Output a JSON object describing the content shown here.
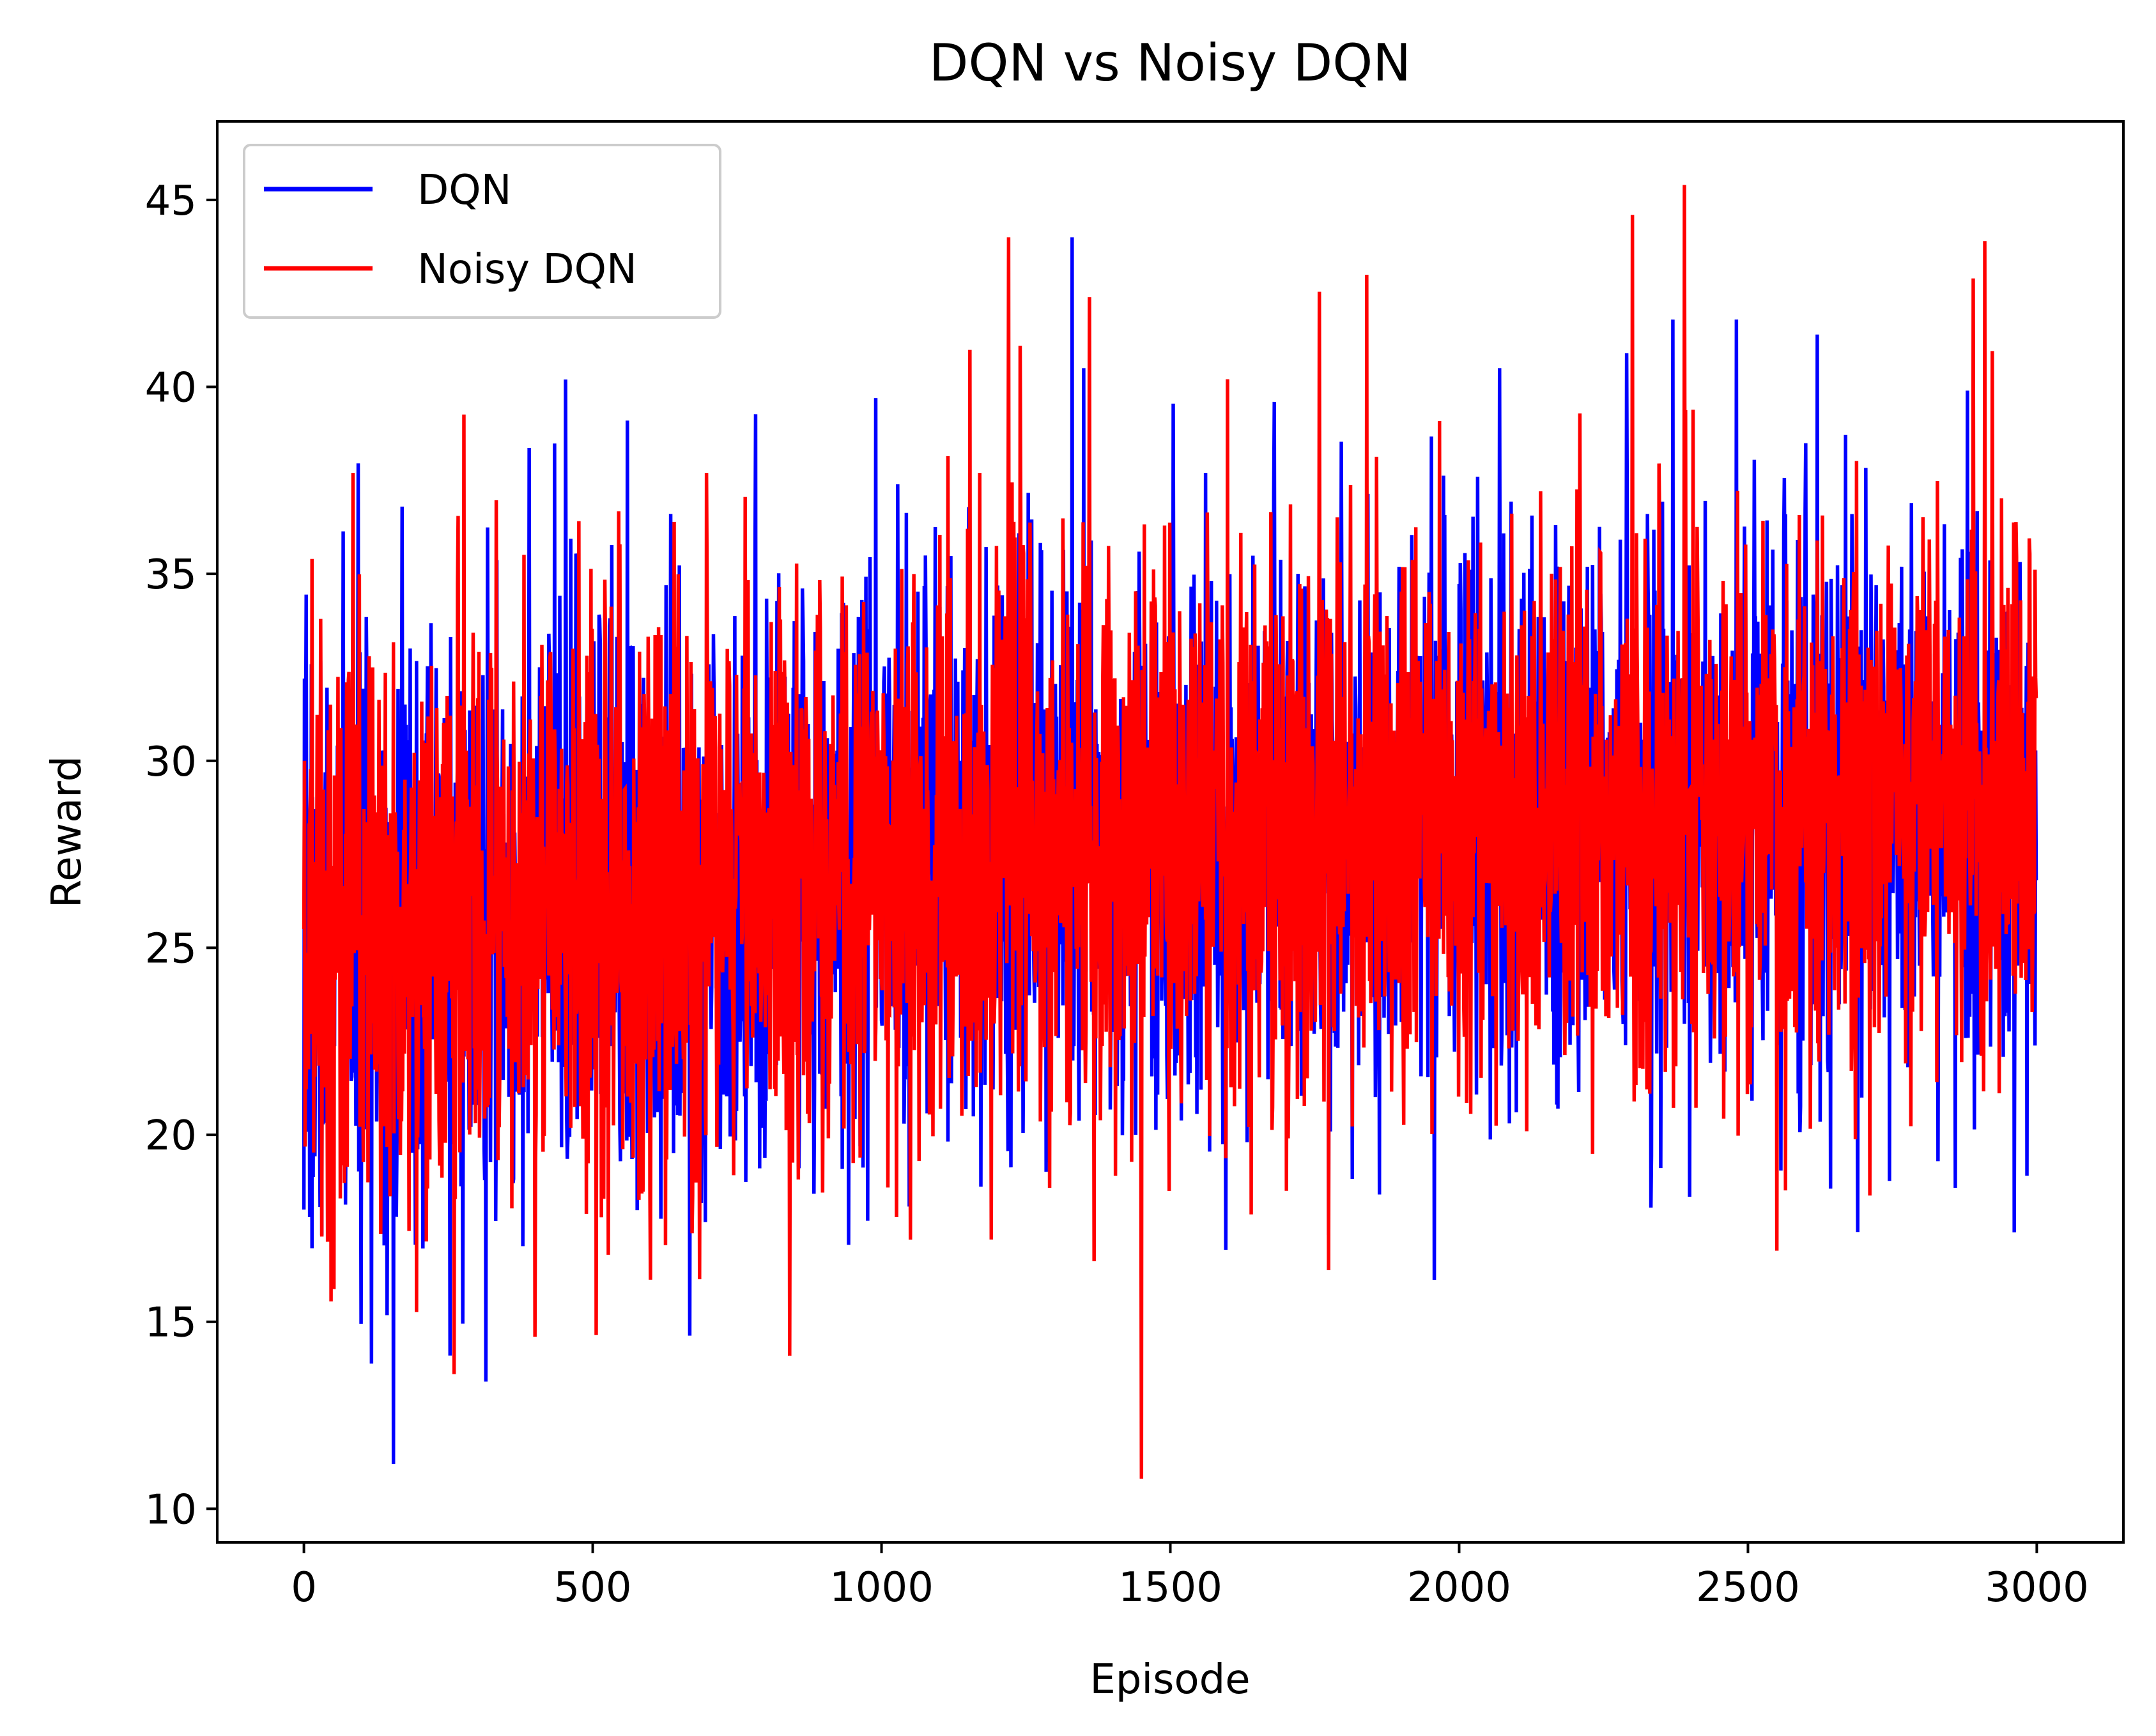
{
  "chart_data": {
    "type": "line",
    "title": "DQN vs Noisy DQN",
    "xlabel": "Episode",
    "ylabel": "Reward",
    "xlim": [
      -150,
      3150
    ],
    "ylim": [
      9.1,
      47.1
    ],
    "xticks": [
      0,
      500,
      1000,
      1500,
      2000,
      2500,
      3000
    ],
    "yticks": [
      10,
      15,
      20,
      25,
      30,
      35,
      40,
      45
    ],
    "grid": false,
    "legend_position": "top-left",
    "series": [
      {
        "name": "DQN",
        "color": "#0000ff",
        "generator": "noisy-reward",
        "n_points": 3000,
        "seed": 7,
        "trend": [
          [
            0,
            25.0
          ],
          [
            500,
            26.2
          ],
          [
            1000,
            27.4
          ],
          [
            1500,
            27.8
          ],
          [
            2000,
            28.4
          ],
          [
            2500,
            28.6
          ],
          [
            3000,
            28.8
          ]
        ],
        "spread": [
          [
            0,
            4.1
          ],
          [
            3000,
            3.6
          ]
        ],
        "spikes": [
          [
            0,
            18.0
          ],
          [
            1,
            32.2
          ],
          [
            10,
            17.8
          ],
          [
            155,
            11.2
          ],
          [
            170,
            36.8
          ],
          [
            315,
            13.4
          ],
          [
            453,
            40.2
          ],
          [
            560,
            39.1
          ],
          [
            990,
            39.7
          ],
          [
            1330,
            44.0
          ],
          [
            1350,
            40.5
          ],
          [
            1440,
            20.0
          ],
          [
            1680,
            39.6
          ],
          [
            2070,
            40.5
          ],
          [
            2290,
            40.9
          ],
          [
            2370,
            41.8
          ],
          [
            2480,
            41.8
          ],
          [
            2620,
            41.4
          ],
          [
            2690,
            17.4
          ],
          [
            2880,
            39.9
          ],
          [
            3000,
            22.8
          ]
        ]
      },
      {
        "name": "Noisy DQN",
        "color": "#ff0000",
        "generator": "noisy-reward",
        "n_points": 3000,
        "seed": 13,
        "trend": [
          [
            0,
            25.2
          ],
          [
            500,
            26.3
          ],
          [
            1000,
            27.5
          ],
          [
            1500,
            27.9
          ],
          [
            2000,
            28.6
          ],
          [
            2500,
            28.7
          ],
          [
            3000,
            28.9
          ]
        ],
        "spread": [
          [
            0,
            4.1
          ],
          [
            3000,
            3.6
          ]
        ],
        "spikes": [
          [
            0,
            25.5
          ],
          [
            1,
            30.0
          ],
          [
            14,
            35.4
          ],
          [
            85,
            37.7
          ],
          [
            260,
            13.6
          ],
          [
            400,
            14.6
          ],
          [
            1190,
            17.2
          ],
          [
            1220,
            44.0
          ],
          [
            1240,
            41.1
          ],
          [
            1360,
            42.4
          ],
          [
            1450,
            10.8
          ],
          [
            1840,
            43.0
          ],
          [
            2300,
            44.6
          ],
          [
            2390,
            45.4
          ],
          [
            2550,
            16.9
          ],
          [
            2890,
            42.9
          ],
          [
            2910,
            43.9
          ],
          [
            3000,
            37.5
          ]
        ]
      }
    ]
  }
}
